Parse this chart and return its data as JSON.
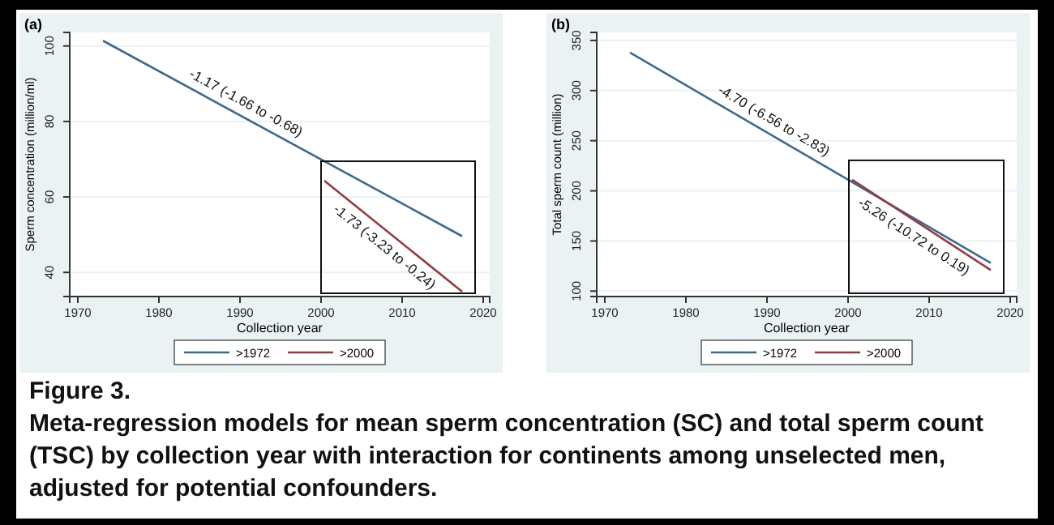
{
  "chart_data": [
    {
      "type": "line",
      "title": "(a)",
      "xlabel": "Collection year",
      "ylabel": "Sperm concentration (million/ml)",
      "series": [
        {
          "name": ">1972",
          "color": "#3e6a8f",
          "x": [
            1973.1,
            2017.4
          ],
          "values": [
            101.4,
            49.6
          ]
        },
        {
          "name": ">2000",
          "color": "#943c40",
          "x": [
            2000.4,
            2017.4
          ],
          "values": [
            64.3,
            34.9
          ]
        }
      ],
      "xlim": [
        1969,
        2020.8
      ],
      "xticks": [
        1970,
        1980,
        1990,
        2000,
        2010,
        2020
      ],
      "ylim": [
        33.6,
        103.6
      ],
      "yticks": [
        40,
        60,
        80,
        100
      ],
      "grid": "y",
      "legend": "bottom",
      "annotations": [
        "-1.17 (-1.66 to -0.68)",
        "-1.73 (-3.23 to -0.24)",
        "Figure 3.",
        "Meta-regression models for mean sperm concentration (SC) and total sperm count (TSC) by collection year with interaction for continents among unselected men, adjusted for potential confounders."
      ]
    },
    {
      "type": "line",
      "title": "(b)",
      "xlabel": "Collection year",
      "ylabel": "Total sperm count (million)",
      "series": [
        {
          "name": ">1972",
          "color": "#3e6a8f",
          "x": [
            1973.1,
            2017.6
          ],
          "values": [
            338,
            128
          ]
        },
        {
          "name": ">2000",
          "color": "#943c40",
          "x": [
            2000.5,
            2017.6
          ],
          "values": [
            211,
            121
          ]
        }
      ],
      "xlim": [
        1969,
        2020.8
      ],
      "xticks": [
        1970,
        1980,
        1990,
        2000,
        2010,
        2020
      ],
      "ylim": [
        94.6,
        358
      ],
      "yticks": [
        100,
        150,
        200,
        250,
        300,
        350
      ],
      "grid": "y",
      "legend": "bottom",
      "annotations": [
        "-4.70 (-6.56 to -2.83)",
        "-5.26 (-10.72 to 0.19)"
      ]
    }
  ]
}
